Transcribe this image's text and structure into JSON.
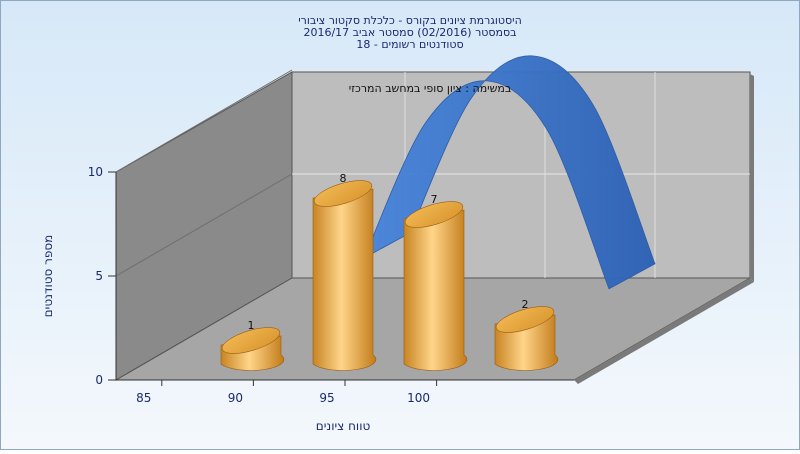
{
  "chart_data": {
    "type": "bar",
    "title_lines": [
      "היסטוגרמת ציונים בקורס - כלכלת סקטור ציבורי",
      "בסמסטר  (02/2016)  סמסטר אביב 2016/17",
      "סטודנטים רשומים - 18"
    ],
    "annotation": "במשימה : ציון סופי במחשב המרכזי",
    "xlabel": "טווח ציונים",
    "ylabel": "מספר סטודנטים",
    "ylim": [
      0,
      10
    ],
    "yticks": [
      "0",
      "5",
      "10"
    ],
    "xticks": [
      "85",
      "90",
      "95",
      "100"
    ],
    "series": [
      {
        "type": "bar",
        "x": [
          85,
          90,
          95,
          100
        ],
        "values": [
          1,
          8,
          7,
          2
        ],
        "labels": [
          "1",
          "8",
          "7",
          "2"
        ],
        "color": "#E6A33C"
      },
      {
        "type": "curve",
        "x": [
          90,
          92.5,
          95,
          97.5,
          100
        ],
        "values": [
          6,
          9.5,
          10.6,
          9.3,
          5.2
        ],
        "color": "#3366CC"
      }
    ],
    "grid": true,
    "legend": "none"
  }
}
